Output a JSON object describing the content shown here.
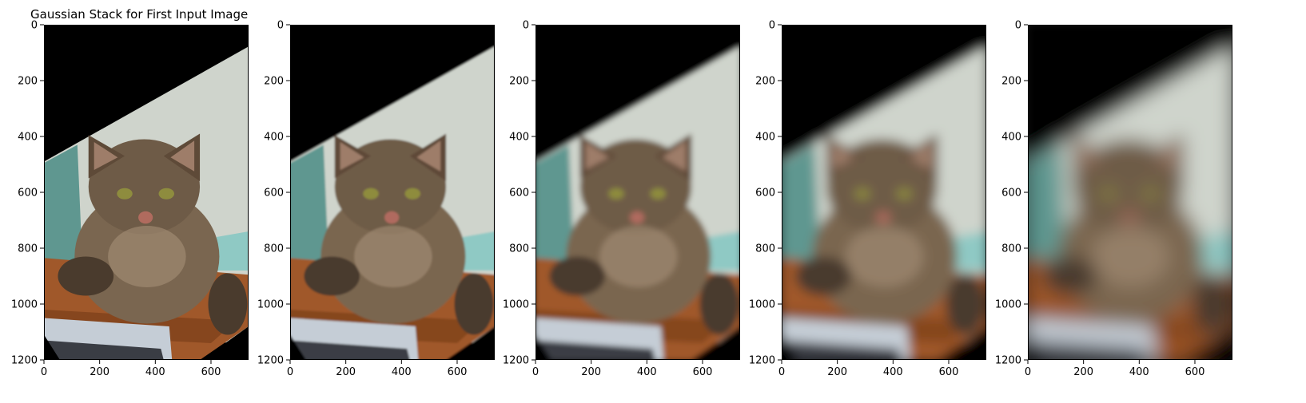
{
  "figure": {
    "title": "Gaussian Stack for First Input Image"
  },
  "panels": [
    {
      "blur": 0
    },
    {
      "blur": 1.2
    },
    {
      "blur": 3.5
    },
    {
      "blur": 7
    },
    {
      "blur": 12
    }
  ],
  "axes": {
    "x_ticks": [
      0,
      200,
      400,
      600
    ],
    "y_ticks": [
      0,
      200,
      400,
      600,
      800,
      1000,
      1200
    ],
    "x_range": [
      0,
      735
    ],
    "y_range": [
      0,
      1200
    ]
  },
  "colors": {
    "background": "#000000",
    "wall": "#cfd4cc",
    "teal": "#5f9790",
    "fur": "#7a6650",
    "fur_dark": "#4a3b2d",
    "wood": "#a0582a",
    "bin": "#c5cdd6"
  }
}
